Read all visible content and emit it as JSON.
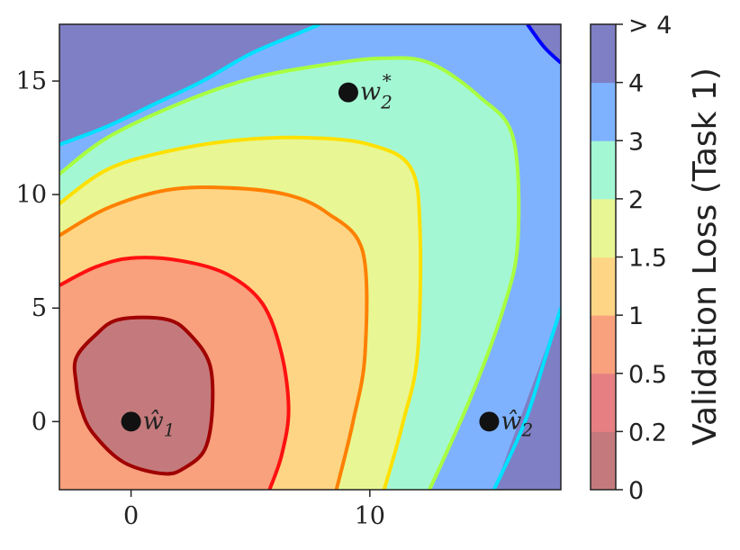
{
  "chart_data": {
    "type": "contour",
    "xlim": [
      -3,
      18
    ],
    "ylim": [
      -3,
      17.5
    ],
    "x_ticks": [
      0,
      10
    ],
    "y_ticks": [
      0,
      5,
      10,
      15
    ],
    "x_tick_labels": [
      "0",
      "10"
    ],
    "y_tick_labels": [
      "0",
      "5",
      "10",
      "15"
    ],
    "grid": false,
    "colorbar": {
      "label": "Validation Loss (Task 1)",
      "levels": [
        0,
        0.2,
        0.5,
        1,
        1.5,
        2,
        3,
        4,
        ">4"
      ],
      "tick_labels": [
        "0",
        "0.2",
        "0.5",
        "1",
        "1.5",
        "2",
        "3",
        "4",
        "> 4"
      ],
      "fill_colors": [
        "#c47a7c",
        "#e57f81",
        "#f9a07d",
        "#fdd585",
        "#e8f793",
        "#a4f7d3",
        "#7eb2ff",
        "#7f7fc5"
      ],
      "line_colors": [
        "#a00000",
        "#ff1010",
        "#ff8000",
        "#ffe000",
        "#a8ff40",
        "#00e0ff",
        "#0000ff"
      ]
    },
    "contours": [
      {
        "level": 0.2,
        "points": [
          [
            -2.3,
            2.8
          ],
          [
            -1.5,
            3.8
          ],
          [
            -0.5,
            4.5
          ],
          [
            1.5,
            4.5
          ],
          [
            2.5,
            3.8
          ],
          [
            3.3,
            2.5
          ],
          [
            3.4,
            0.5
          ],
          [
            3.1,
            -1.2
          ],
          [
            2.3,
            -2.0
          ],
          [
            1.4,
            -2.3
          ],
          [
            -0.3,
            -1.8
          ],
          [
            -1.6,
            -0.5
          ],
          [
            -2.1,
            0.6
          ],
          [
            -2.3,
            1.7
          ]
        ]
      },
      {
        "level": 0.5,
        "points": [
          [
            -3,
            6
          ],
          [
            -1.5,
            6.8
          ],
          [
            0,
            7.2
          ],
          [
            2,
            7.1
          ],
          [
            4,
            6.5
          ],
          [
            5.5,
            5.2
          ],
          [
            6.3,
            3
          ],
          [
            6.6,
            0.5
          ],
          [
            6.3,
            -1.5
          ],
          [
            5.8,
            -3
          ]
        ]
      },
      {
        "level": 1,
        "points": [
          [
            -3,
            8.2
          ],
          [
            -1,
            9.4
          ],
          [
            1.5,
            10.2
          ],
          [
            4,
            10.3
          ],
          [
            6.5,
            10
          ],
          [
            8.2,
            9.2
          ],
          [
            9.7,
            7.5
          ],
          [
            9.8,
            3
          ],
          [
            9.3,
            0
          ],
          [
            8.6,
            -3
          ]
        ]
      },
      {
        "level": 1.5,
        "points": [
          [
            -3,
            9.6
          ],
          [
            -1,
            11.1
          ],
          [
            1.5,
            11.9
          ],
          [
            4.5,
            12.4
          ],
          [
            7.5,
            12.5
          ],
          [
            10,
            12.2
          ],
          [
            11.7,
            11.2
          ],
          [
            12.1,
            8.5
          ],
          [
            12,
            3
          ],
          [
            11.4,
            0
          ],
          [
            10.6,
            -3
          ]
        ]
      },
      {
        "level": 2,
        "points": [
          [
            -3,
            10.9
          ],
          [
            -1,
            12.5
          ],
          [
            2,
            14
          ],
          [
            5,
            15.1
          ],
          [
            8,
            15.7
          ],
          [
            10.5,
            16
          ],
          [
            12.5,
            15.8
          ],
          [
            14.6,
            14.3
          ],
          [
            16,
            12.5
          ],
          [
            16.2,
            8
          ],
          [
            15.6,
            5
          ],
          [
            14.2,
            1
          ],
          [
            12.5,
            -3
          ]
        ]
      },
      {
        "level": 3,
        "points": [
          [
            -3,
            12.2
          ],
          [
            -1,
            13
          ],
          [
            1,
            14
          ],
          [
            3,
            15
          ],
          [
            5,
            16.2
          ],
          [
            7,
            17.1
          ],
          [
            7.9,
            17.5
          ]
        ]
      },
      {
        "level": 3,
        "points": [
          [
            15.2,
            -3
          ],
          [
            16.5,
            0
          ],
          [
            17.4,
            3
          ],
          [
            18,
            5
          ]
        ]
      },
      {
        "level": 4,
        "points": [
          [
            16.6,
            17.5
          ],
          [
            17.3,
            16.5
          ],
          [
            18,
            15.8
          ]
        ]
      }
    ],
    "points": [
      {
        "label": "ŵ1",
        "x": 0,
        "y": 0
      },
      {
        "label": "w2*",
        "x": 9.1,
        "y": 14.5
      },
      {
        "label": "ŵ2",
        "x": 15,
        "y": 0
      }
    ]
  }
}
